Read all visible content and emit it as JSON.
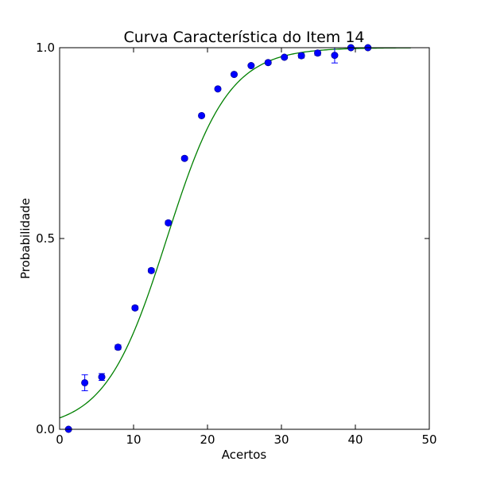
{
  "chart_data": {
    "type": "scatter",
    "title": "Curva Característica do Item 14",
    "xlabel": "Acertos",
    "ylabel": "Probabilidade",
    "xlim": [
      0,
      50
    ],
    "ylim": [
      0.0,
      1.0
    ],
    "xticks": [
      0,
      10,
      20,
      30,
      40,
      50
    ],
    "xtick_labels": [
      "0",
      "10",
      "20",
      "30",
      "40",
      "50"
    ],
    "yticks": [
      0.0,
      0.5,
      1.0
    ],
    "ytick_labels": [
      "0.0",
      "0.5",
      "1.0"
    ],
    "grid": false,
    "series": [
      {
        "kind": "points_with_error_bars",
        "color": "#0000ff",
        "points": [
          {
            "x": 1.2,
            "y": 0.0,
            "err": 0.0
          },
          {
            "x": 3.4,
            "y": 0.122,
            "err": 0.021
          },
          {
            "x": 5.7,
            "y": 0.137,
            "err": 0.009
          },
          {
            "x": 7.9,
            "y": 0.215,
            "err": 0.006
          },
          {
            "x": 10.2,
            "y": 0.318,
            "err": 0.005
          },
          {
            "x": 12.4,
            "y": 0.416,
            "err": 0.005
          },
          {
            "x": 14.7,
            "y": 0.541,
            "err": 0.005
          },
          {
            "x": 16.9,
            "y": 0.71,
            "err": 0.004
          },
          {
            "x": 19.2,
            "y": 0.822,
            "err": 0.004
          },
          {
            "x": 21.4,
            "y": 0.892,
            "err": 0.003
          },
          {
            "x": 23.6,
            "y": 0.93,
            "err": 0.003
          },
          {
            "x": 25.9,
            "y": 0.953,
            "err": 0.003
          },
          {
            "x": 28.2,
            "y": 0.961,
            "err": 0.004
          },
          {
            "x": 30.4,
            "y": 0.975,
            "err": 0.004
          },
          {
            "x": 32.7,
            "y": 0.979,
            "err": 0.006
          },
          {
            "x": 34.9,
            "y": 0.986,
            "err": 0.006
          },
          {
            "x": 37.2,
            "y": 0.98,
            "err": 0.02
          },
          {
            "x": 39.4,
            "y": 1.0,
            "err": 0.0
          },
          {
            "x": 41.7,
            "y": 1.0,
            "err": 0.0
          }
        ]
      },
      {
        "kind": "fitted_curve",
        "color": "#008000",
        "x_range": [
          0,
          47.5
        ],
        "logistic_mid": 14.5,
        "logistic_slope": 0.24
      }
    ]
  }
}
